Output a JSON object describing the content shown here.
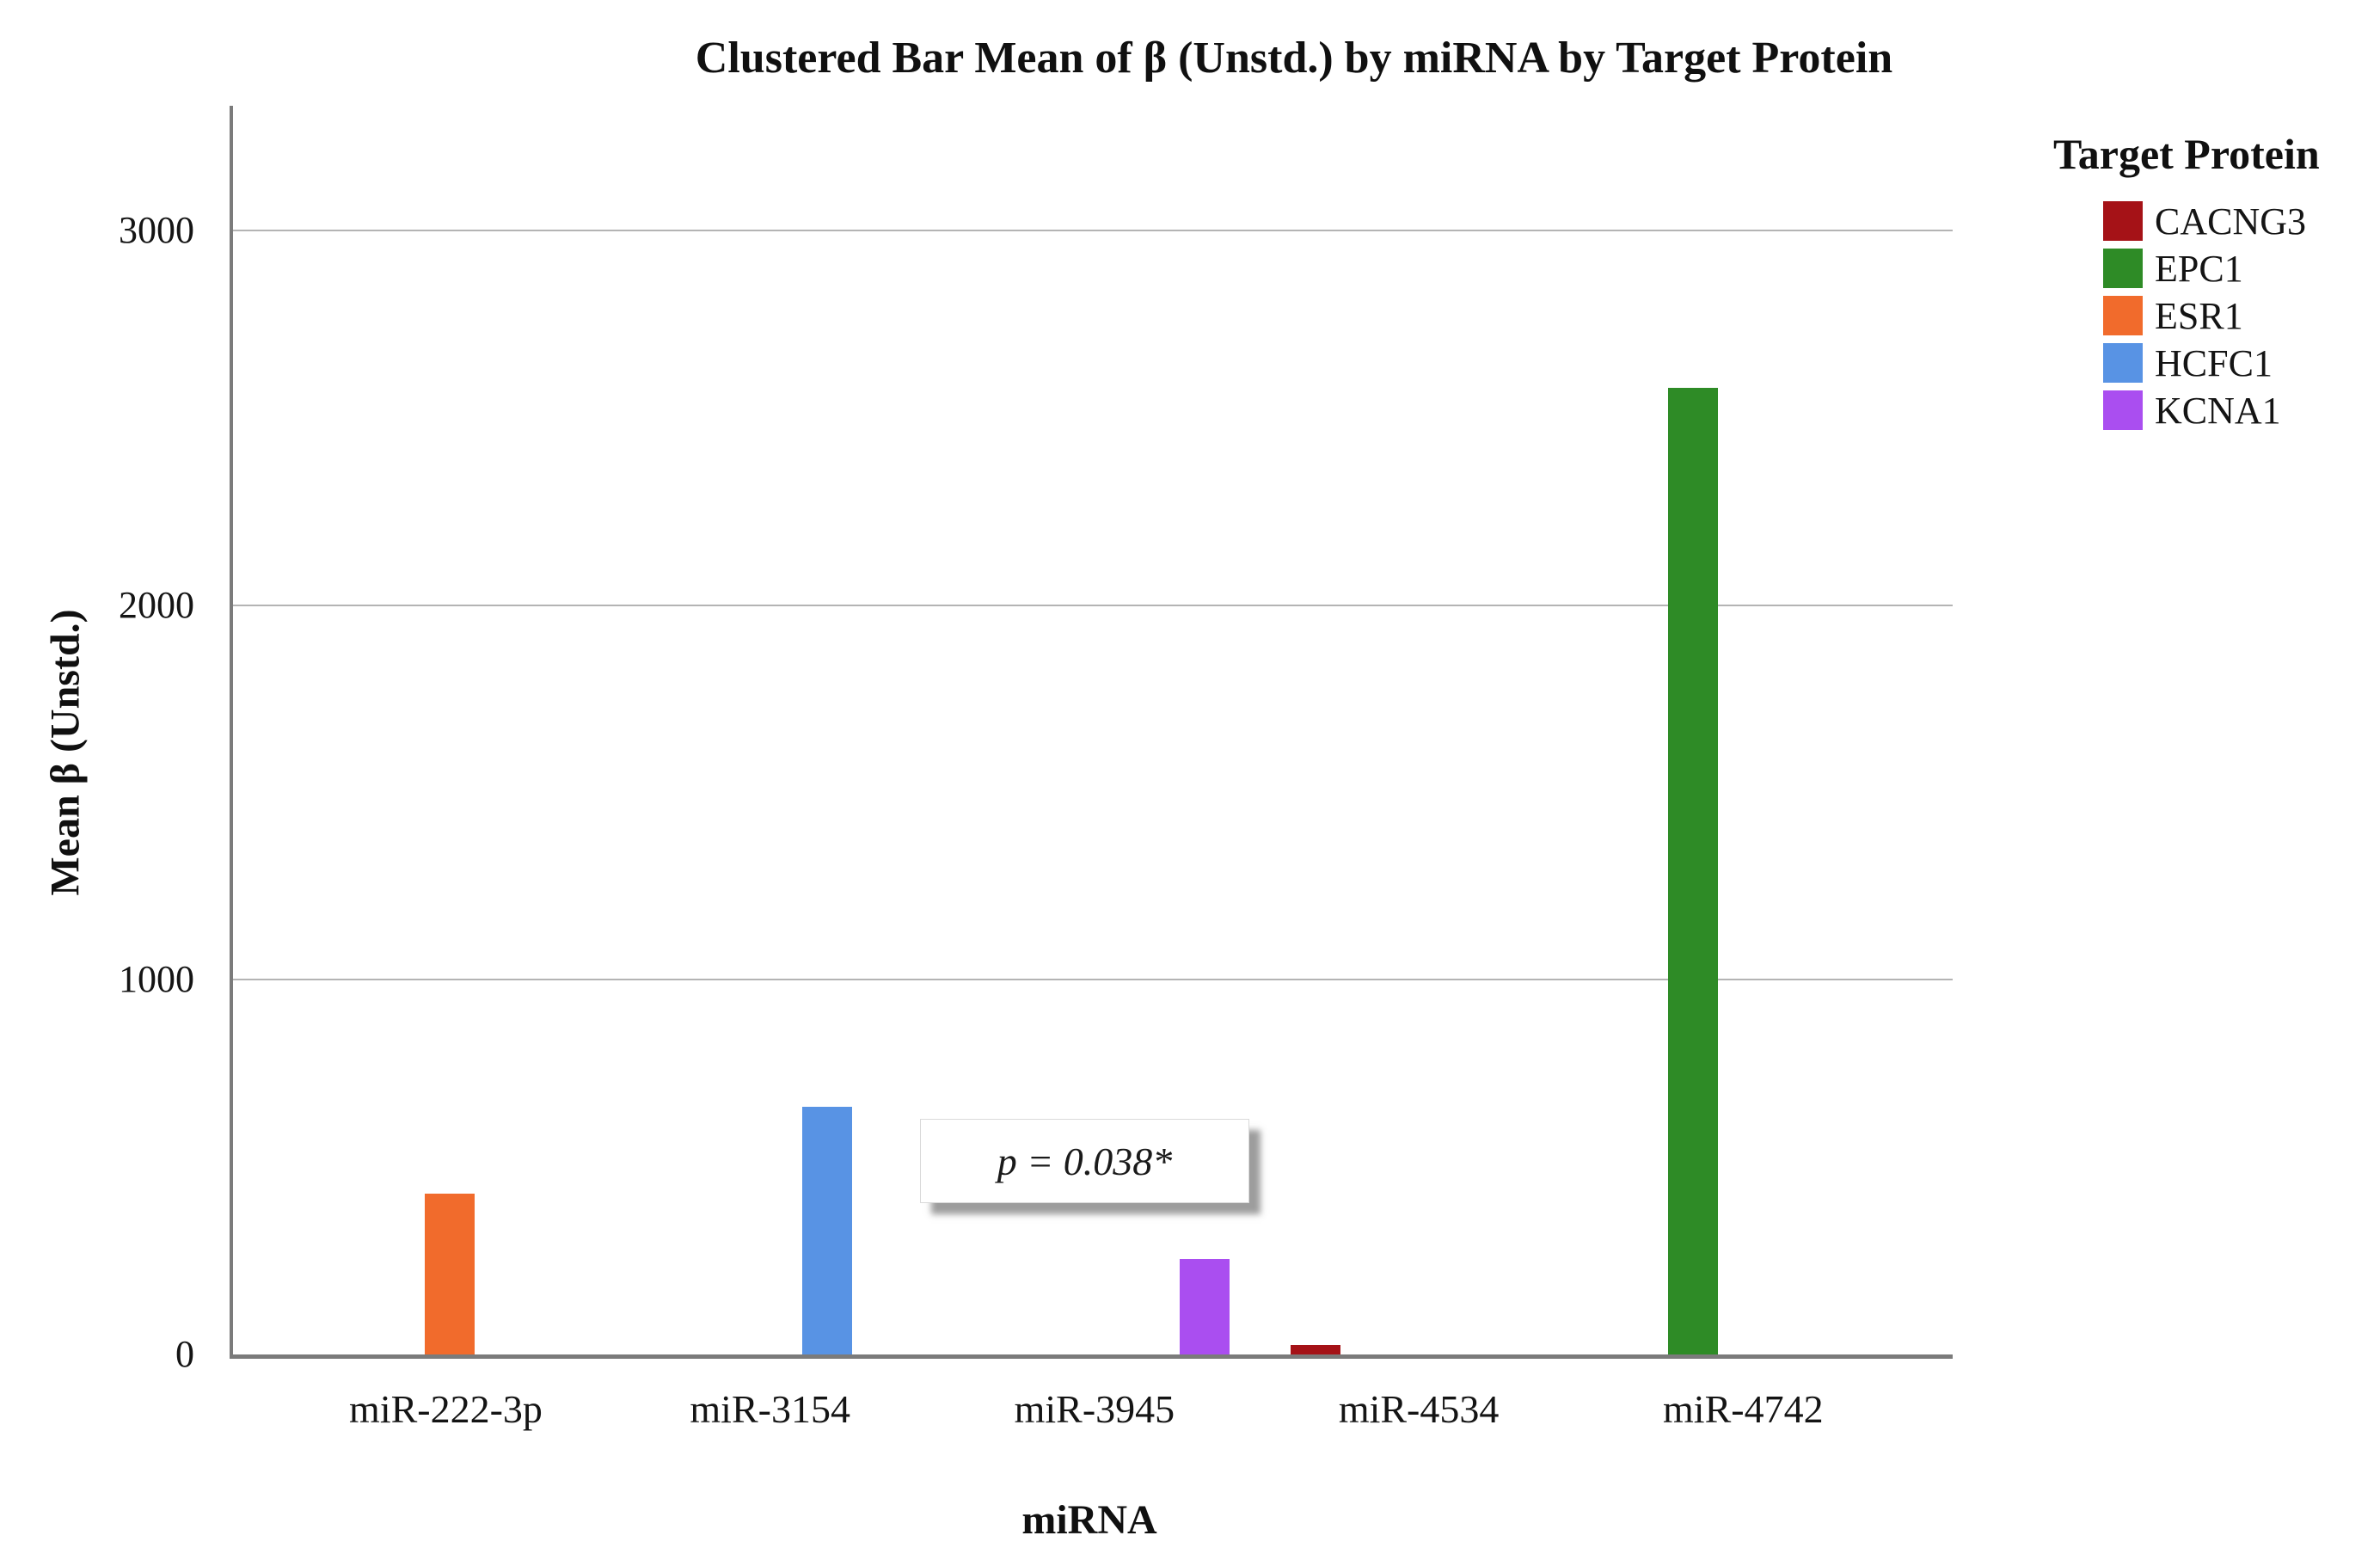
{
  "chart_data": {
    "type": "bar",
    "title": "Clustered Bar Mean of β (Unstd.) by miRNA by Target Protein",
    "xlabel": "miRNA",
    "ylabel": "Mean β (Unstd.)",
    "ylim": [
      0,
      3333
    ],
    "yticks": [
      0,
      1000,
      2000,
      3000
    ],
    "grid": true,
    "legend_position": "right",
    "legend_title": "Target Protein",
    "categories": [
      "miR-222-3p",
      "miR-3154",
      "miR-3945",
      "miR-4534",
      "miR-4742"
    ],
    "series": [
      {
        "name": "CACNG3",
        "color": "#a51217",
        "values": [
          0,
          0,
          0,
          25,
          0
        ]
      },
      {
        "name": "EPC1",
        "color": "#2e8b26",
        "values": [
          0,
          0,
          0,
          0,
          2580
        ]
      },
      {
        "name": "ESR1",
        "color": "#f16b2c",
        "values": [
          430,
          0,
          0,
          0,
          0
        ]
      },
      {
        "name": "HCFC1",
        "color": "#5893e4",
        "values": [
          0,
          660,
          0,
          0,
          0
        ]
      },
      {
        "name": "KCNA1",
        "color": "#aa4ef0",
        "values": [
          0,
          0,
          255,
          0,
          0
        ]
      }
    ],
    "annotation": "p = 0.038*",
    "axis_color": "#7b7b7b",
    "gridline_color": "#b4b4b4"
  }
}
